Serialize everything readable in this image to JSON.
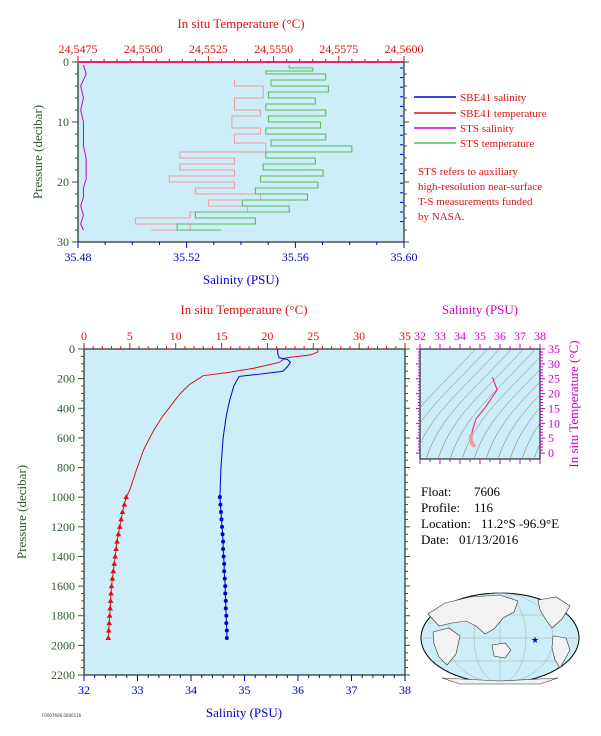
{
  "colors": {
    "plot_bg": "#cdeef8",
    "salinity": "#0000cc",
    "temperature": "#dd1111",
    "sts_salinity": "#cc00cc",
    "sts_temperature": "#55bb55",
    "sts_temp_pink": "#f49b9b",
    "pressure_axis": "#2e5a2e",
    "ts_axis": "#cc00cc"
  },
  "legend": {
    "items": [
      {
        "label": "SBE41 salinity",
        "color": "#0000cc"
      },
      {
        "label": "SBE41 temperature",
        "color": "#dd1111"
      },
      {
        "label": "STS salinity",
        "color": "#cc00cc"
      },
      {
        "label": "STS temperature",
        "color": "#55bb55"
      }
    ],
    "note": [
      "STS refers to auxiliary",
      "high-resolution near-surface",
      "T-S measurements funded",
      "by NASA."
    ]
  },
  "info": {
    "float_label": "Float:",
    "float_value": "7606",
    "profile_label": "Profile:",
    "profile_value": "116",
    "location_label": "Location:",
    "location_value": "11.2°S  -96.9°E",
    "date_label": "Date:",
    "date_value": "01/13/2016"
  },
  "footer_code": "F0007606.0000116",
  "chart_data": [
    {
      "type": "line",
      "title": "",
      "x_top_label": "In situ Temperature (°C)",
      "x_top_ticks": [
        "24,5475",
        "24,5500",
        "24,5525",
        "24,5550",
        "24,5575",
        "24,5600"
      ],
      "x_top_range": [
        24.5475,
        24.56
      ],
      "xlabel": "Salinity (PSU)",
      "x_ticks": [
        "35.48",
        "35.52",
        "35.56",
        "35.60"
      ],
      "xlim": [
        35.48,
        35.6
      ],
      "ylabel": "Pressure (decibar)",
      "y_ticks": [
        "0",
        "10",
        "20",
        "30"
      ],
      "ylim": [
        30,
        0
      ],
      "series": [
        {
          "name": "STS salinity",
          "axis": "bottom",
          "values": [
            [
              35.482,
              0.5
            ],
            [
              35.483,
              2
            ],
            [
              35.481,
              4
            ],
            [
              35.482,
              6
            ],
            [
              35.481,
              8
            ],
            [
              35.482,
              10
            ],
            [
              35.482,
              12
            ],
            [
              35.482,
              14
            ],
            [
              35.483,
              16
            ],
            [
              35.483,
              18
            ],
            [
              35.483,
              19.5
            ],
            [
              35.482,
              21
            ],
            [
              35.482,
              22.5
            ],
            [
              35.481,
              24
            ],
            [
              35.482,
              25.5
            ],
            [
              35.481,
              27
            ],
            [
              35.482,
              28
            ]
          ]
        },
        {
          "name": "STS temperature",
          "axis": "top",
          "values": [
            [
              24.5556,
              0.5
            ],
            [
              24.5565,
              1
            ],
            [
              24.5547,
              1.5
            ],
            [
              24.557,
              2
            ],
            [
              24.5549,
              3
            ],
            [
              24.5571,
              4
            ],
            [
              24.5548,
              5
            ],
            [
              24.5566,
              6
            ],
            [
              24.5547,
              7
            ],
            [
              24.557,
              8
            ],
            [
              24.5548,
              9
            ],
            [
              24.5568,
              10
            ],
            [
              24.5547,
              11
            ],
            [
              24.557,
              12
            ],
            [
              24.5549,
              13
            ],
            [
              24.558,
              14
            ],
            [
              24.5547,
              15
            ],
            [
              24.5566,
              16
            ],
            [
              24.5546,
              17
            ],
            [
              24.5569,
              18
            ],
            [
              24.5545,
              19
            ],
            [
              24.5567,
              20
            ],
            [
              24.5543,
              21
            ],
            [
              24.5563,
              22
            ],
            [
              24.5538,
              23
            ],
            [
              24.5556,
              24
            ],
            [
              24.552,
              25
            ],
            [
              24.5543,
              26
            ],
            [
              24.5513,
              27
            ],
            [
              24.553,
              28
            ]
          ]
        },
        {
          "name": "STS temperature (pink)",
          "axis": "top",
          "values": [
            [
              24.5535,
              3
            ],
            [
              24.5546,
              4
            ],
            [
              24.5535,
              6
            ],
            [
              24.5545,
              8
            ],
            [
              24.5534,
              9
            ],
            [
              24.5545,
              11
            ],
            [
              24.5535,
              12
            ],
            [
              24.5547,
              13.5
            ],
            [
              24.5514,
              15
            ],
            [
              24.5535,
              16
            ],
            [
              24.5514,
              17
            ],
            [
              24.5535,
              18
            ],
            [
              24.551,
              19
            ],
            [
              24.5535,
              20
            ],
            [
              24.552,
              21
            ],
            [
              24.5545,
              22
            ],
            [
              24.5525,
              23
            ],
            [
              24.554,
              24
            ],
            [
              24.5518,
              25
            ],
            [
              24.5497,
              26
            ],
            [
              24.5518,
              27
            ],
            [
              24.5503,
              28
            ]
          ]
        }
      ]
    },
    {
      "type": "line",
      "title": "",
      "x_top_label": "In situ Temperature (°C)",
      "x_top_ticks": [
        "0",
        "5",
        "10",
        "15",
        "20",
        "25",
        "30",
        "35"
      ],
      "x_top_range": [
        0,
        35
      ],
      "xlabel": "Salinity (PSU)",
      "x_ticks": [
        "32",
        "33",
        "34",
        "35",
        "36",
        "37",
        "38"
      ],
      "xlim": [
        32,
        38
      ],
      "ylabel": "Pressure (decibar)",
      "y_ticks": [
        "0",
        "200",
        "400",
        "600",
        "800",
        "1000",
        "1200",
        "1400",
        "1600",
        "1800",
        "2000",
        "2200"
      ],
      "ylim": [
        2200,
        0
      ],
      "series": [
        {
          "name": "SBE41 salinity",
          "axis": "bottom",
          "values": [
            [
              35.62,
              0
            ],
            [
              35.62,
              30
            ],
            [
              35.65,
              60
            ],
            [
              35.8,
              70
            ],
            [
              35.86,
              90
            ],
            [
              35.8,
              120
            ],
            [
              35.72,
              150
            ],
            [
              35.28,
              170
            ],
            [
              34.9,
              185
            ],
            [
              34.8,
              250
            ],
            [
              34.72,
              350
            ],
            [
              34.66,
              450
            ],
            [
              34.6,
              600
            ],
            [
              34.56,
              800
            ],
            [
              34.54,
              1000
            ]
          ],
          "points": [
            [
              34.54,
              1000
            ],
            [
              34.55,
              1050
            ],
            [
              34.56,
              1100
            ],
            [
              34.57,
              1150
            ],
            [
              34.58,
              1200
            ],
            [
              34.59,
              1250
            ],
            [
              34.6,
              1300
            ],
            [
              34.6,
              1350
            ],
            [
              34.61,
              1400
            ],
            [
              34.62,
              1450
            ],
            [
              34.62,
              1500
            ],
            [
              34.63,
              1550
            ],
            [
              34.64,
              1600
            ],
            [
              34.64,
              1650
            ],
            [
              34.65,
              1700
            ],
            [
              34.65,
              1750
            ],
            [
              34.66,
              1800
            ],
            [
              34.66,
              1850
            ],
            [
              34.67,
              1900
            ],
            [
              34.67,
              1950
            ]
          ]
        },
        {
          "name": "SBE41 temperature",
          "axis": "top",
          "values": [
            [
              25.5,
              0
            ],
            [
              25.5,
              20
            ],
            [
              24.7,
              40
            ],
            [
              22.0,
              60
            ],
            [
              21.3,
              90
            ],
            [
              18.5,
              130
            ],
            [
              15.5,
              160
            ],
            [
              13.0,
              180
            ],
            [
              11.5,
              240
            ],
            [
              10.5,
              300
            ],
            [
              9.5,
              380
            ],
            [
              8.5,
              460
            ],
            [
              7.5,
              560
            ],
            [
              6.5,
              680
            ],
            [
              5.7,
              820
            ],
            [
              5.0,
              950
            ],
            [
              4.6,
              1000
            ]
          ],
          "points": [
            [
              4.6,
              1000
            ],
            [
              4.4,
              1050
            ],
            [
              4.2,
              1100
            ],
            [
              4.05,
              1150
            ],
            [
              3.9,
              1200
            ],
            [
              3.75,
              1250
            ],
            [
              3.6,
              1300
            ],
            [
              3.5,
              1350
            ],
            [
              3.4,
              1400
            ],
            [
              3.3,
              1450
            ],
            [
              3.2,
              1500
            ],
            [
              3.1,
              1550
            ],
            [
              3.0,
              1600
            ],
            [
              2.95,
              1650
            ],
            [
              2.9,
              1700
            ],
            [
              2.85,
              1750
            ],
            [
              2.8,
              1800
            ],
            [
              2.75,
              1850
            ],
            [
              2.7,
              1900
            ],
            [
              2.65,
              1950
            ]
          ]
        }
      ]
    },
    {
      "type": "scatter",
      "title": "",
      "x_top_label": "Salinity (PSU)",
      "x_top_ticks": [
        "32",
        "33",
        "34",
        "35",
        "36",
        "37",
        "38"
      ],
      "xlim": [
        32,
        38
      ],
      "ylabel": "In situ Temperature (°C)",
      "y_ticks": [
        "0",
        "5",
        "10",
        "15",
        "20",
        "25",
        "30",
        "35"
      ],
      "ylim": [
        -2,
        35
      ],
      "series": [
        {
          "name": "T-S",
          "values": [
            [
              35.62,
              25.5
            ],
            [
              35.86,
              21.3
            ],
            [
              35.28,
              15.5
            ],
            [
              34.8,
              11.5
            ],
            [
              34.66,
              8.5
            ],
            [
              34.56,
              5.7
            ],
            [
              34.54,
              4.6
            ],
            [
              34.58,
              3.9
            ],
            [
              34.62,
              3.2
            ],
            [
              34.67,
              2.65
            ]
          ]
        }
      ]
    }
  ]
}
